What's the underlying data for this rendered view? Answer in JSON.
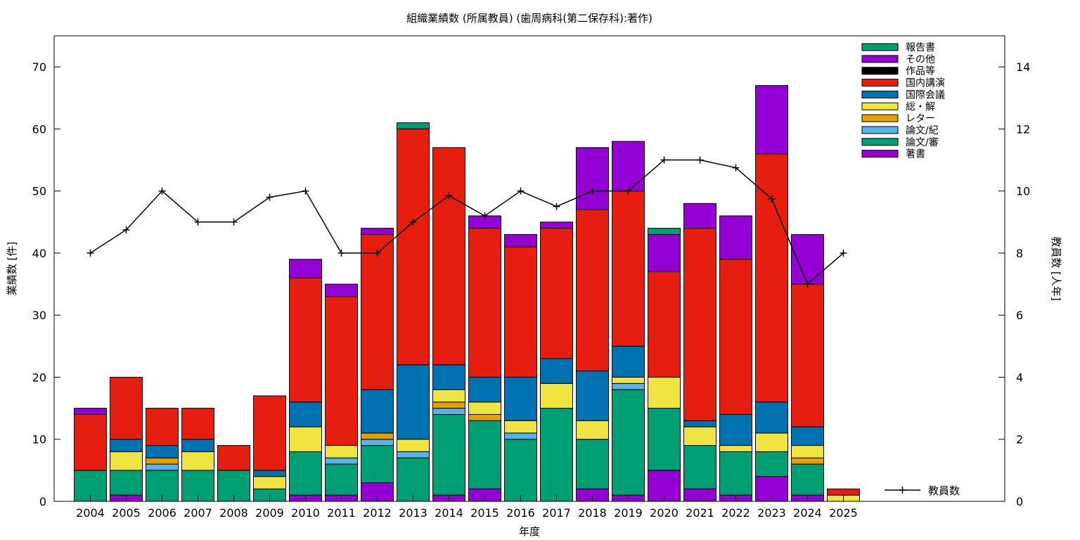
{
  "chart_data": {
    "type": "bar",
    "stacked": true,
    "title": "組織業績数 (所属教員) (歯周病科(第二保存科):著作)",
    "xlabel": "年度",
    "ylabel": "業績数 [件]",
    "y2label": "教員数 [人年]",
    "ylim": [
      0,
      75
    ],
    "y2lim": [
      0,
      15
    ],
    "yticks": [
      "0",
      "10",
      "20",
      "30",
      "40",
      "50",
      "60",
      "70"
    ],
    "y2ticks": [
      "0",
      "2",
      "4",
      "6",
      "8",
      "10",
      "12",
      "14"
    ],
    "grid": false,
    "legend_position": "top-right",
    "categories": [
      "2004",
      "2005",
      "2006",
      "2007",
      "2008",
      "2009",
      "2010",
      "2011",
      "2012",
      "2013",
      "2014",
      "2015",
      "2016",
      "2017",
      "2018",
      "2019",
      "2020",
      "2021",
      "2022",
      "2023",
      "2024",
      "2025"
    ],
    "series": [
      {
        "name": "著書",
        "color": "#9400d3",
        "values": [
          0,
          1,
          0,
          0,
          0,
          0,
          1,
          1,
          3,
          0,
          1,
          2,
          0,
          0,
          2,
          1,
          5,
          2,
          1,
          4,
          1,
          0
        ]
      },
      {
        "name": "論文/審",
        "color": "#009e73",
        "values": [
          5,
          4,
          5,
          5,
          5,
          2,
          7,
          5,
          6,
          7,
          13,
          11,
          10,
          15,
          8,
          17,
          10,
          7,
          7,
          4,
          5,
          0
        ]
      },
      {
        "name": "論文/紀",
        "color": "#56b4e9",
        "values": [
          0,
          0,
          1,
          0,
          0,
          0,
          0,
          1,
          1,
          1,
          1,
          0,
          1,
          0,
          0,
          1,
          0,
          0,
          0,
          0,
          0,
          0
        ]
      },
      {
        "name": "レター",
        "color": "#e69f00",
        "values": [
          0,
          0,
          1,
          0,
          0,
          0,
          0,
          0,
          1,
          0,
          1,
          1,
          0,
          0,
          0,
          0,
          0,
          0,
          0,
          0,
          1,
          0
        ]
      },
      {
        "name": "総・解",
        "color": "#f0e442",
        "values": [
          0,
          3,
          0,
          3,
          0,
          2,
          4,
          2,
          0,
          2,
          2,
          2,
          2,
          4,
          3,
          1,
          5,
          3,
          1,
          3,
          2,
          1
        ]
      },
      {
        "name": "国際会議",
        "color": "#0072b2",
        "values": [
          0,
          2,
          2,
          2,
          0,
          1,
          4,
          0,
          7,
          12,
          4,
          4,
          7,
          4,
          8,
          5,
          0,
          1,
          5,
          5,
          3,
          0
        ]
      },
      {
        "name": "国内講演",
        "color": "#e51e10",
        "values": [
          9,
          10,
          6,
          5,
          4,
          12,
          20,
          24,
          25,
          38,
          35,
          24,
          21,
          21,
          26,
          25,
          17,
          31,
          25,
          40,
          23,
          1
        ]
      },
      {
        "name": "作品等",
        "color": "#000000",
        "values": [
          0,
          0,
          0,
          0,
          0,
          0,
          0,
          0,
          0,
          0,
          0,
          0,
          0,
          0,
          0,
          0,
          0,
          0,
          0,
          0,
          0,
          0
        ]
      },
      {
        "name": "その他",
        "color": "#9400d3",
        "values": [
          1,
          0,
          0,
          0,
          0,
          0,
          3,
          2,
          1,
          0,
          0,
          2,
          2,
          1,
          10,
          8,
          6,
          4,
          7,
          11,
          8,
          0
        ]
      },
      {
        "name": "報告書",
        "color": "#009e73",
        "values": [
          0,
          0,
          0,
          0,
          0,
          0,
          0,
          0,
          0,
          1,
          0,
          0,
          0,
          0,
          0,
          0,
          1,
          0,
          0,
          0,
          0,
          0
        ]
      }
    ],
    "line_series": {
      "name": "教員数",
      "axis": "y2",
      "color": "#000000",
      "values": [
        8,
        8.75,
        10,
        9,
        9,
        9.8,
        10,
        8,
        8,
        9,
        9.85,
        9.2,
        10,
        9.5,
        10,
        10,
        11,
        11,
        10.75,
        9.75,
        7,
        8
      ]
    }
  }
}
